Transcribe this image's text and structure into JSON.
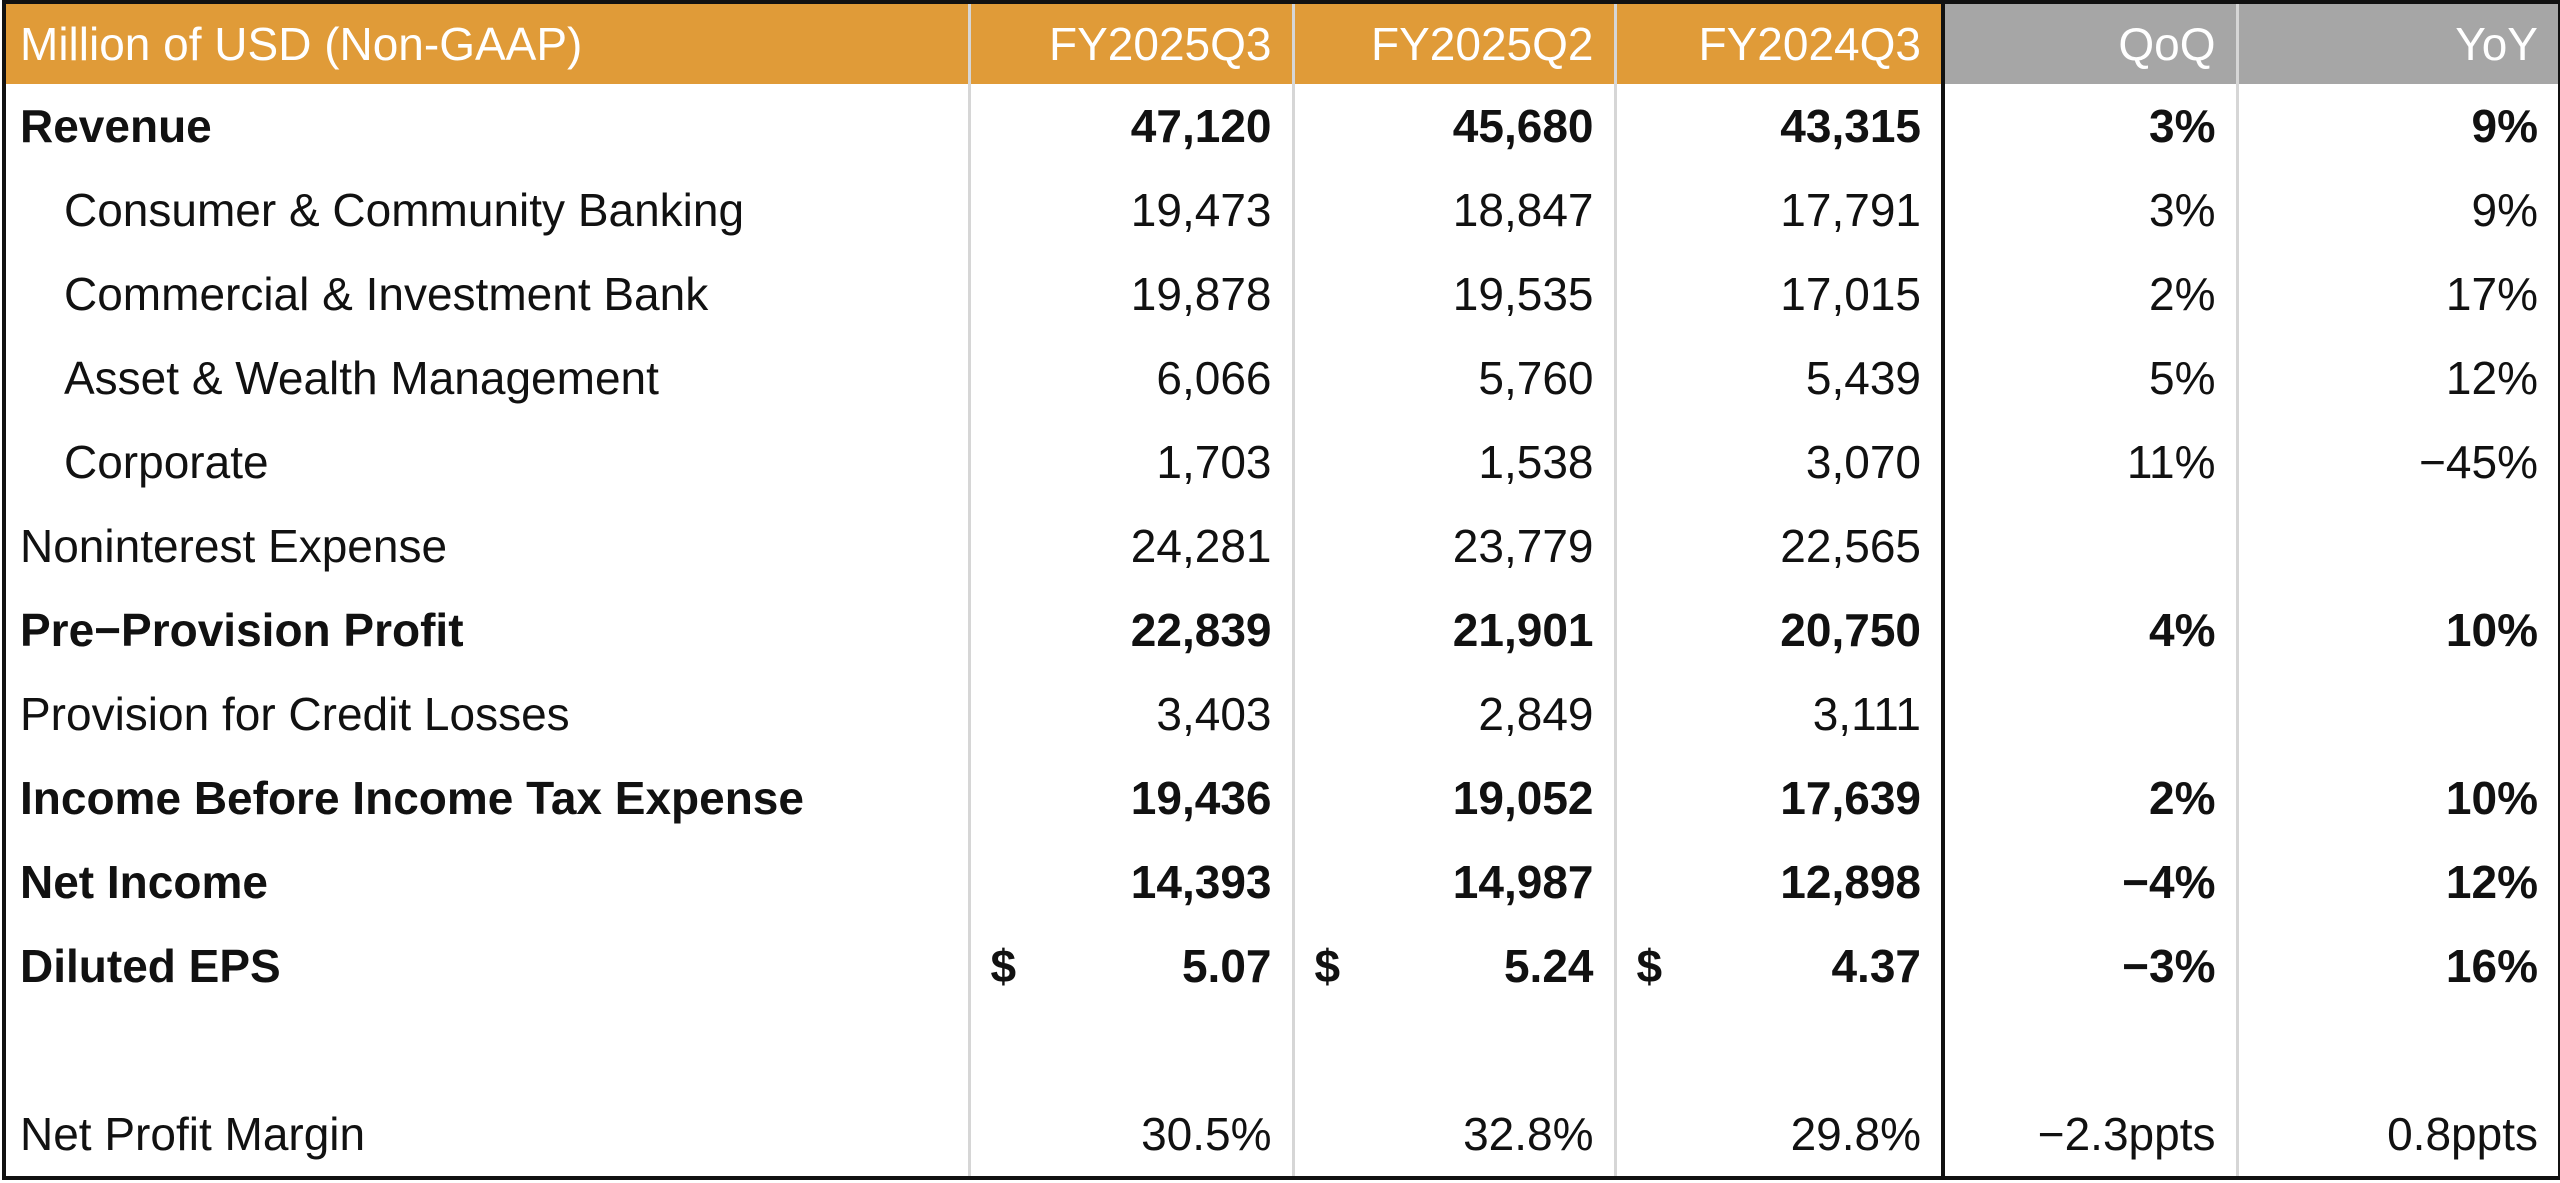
{
  "header": {
    "label": "Million of USD (Non-GAAP)",
    "columns": [
      "FY2025Q3",
      "FY2025Q2",
      "FY2024Q3",
      "QoQ",
      "YoY"
    ]
  },
  "colors": {
    "header_orange": "#e09b38",
    "header_gray": "#a6a6a6"
  },
  "rows": [
    {
      "label": "Revenue",
      "bold": true,
      "indent": false,
      "values": [
        "47,120",
        "45,680",
        "43,315",
        "3%",
        "9%"
      ]
    },
    {
      "label": "Consumer & Community Banking",
      "bold": false,
      "indent": true,
      "values": [
        "19,473",
        "18,847",
        "17,791",
        "3%",
        "9%"
      ]
    },
    {
      "label": "Commercial & Investment Bank",
      "bold": false,
      "indent": true,
      "values": [
        "19,878",
        "19,535",
        "17,015",
        "2%",
        "17%"
      ]
    },
    {
      "label": "Asset & Wealth Management",
      "bold": false,
      "indent": true,
      "values": [
        "6,066",
        "5,760",
        "5,439",
        "5%",
        "12%"
      ]
    },
    {
      "label": "Corporate",
      "bold": false,
      "indent": true,
      "values": [
        "1,703",
        "1,538",
        "3,070",
        "11%",
        "−45%"
      ]
    },
    {
      "label": "Noninterest Expense",
      "bold": false,
      "indent": false,
      "values": [
        "24,281",
        "23,779",
        "22,565",
        "",
        ""
      ]
    },
    {
      "label": "Pre−Provision Profit",
      "bold": true,
      "indent": false,
      "values": [
        "22,839",
        "21,901",
        "20,750",
        "4%",
        "10%"
      ]
    },
    {
      "label": "Provision for Credit Losses",
      "bold": false,
      "indent": false,
      "values": [
        "3,403",
        "2,849",
        "3,111",
        "",
        ""
      ]
    },
    {
      "label": "Income Before Income Tax Expense",
      "bold": true,
      "indent": false,
      "values": [
        "19,436",
        "19,052",
        "17,639",
        "2%",
        "10%"
      ]
    },
    {
      "label": "Net Income",
      "bold": true,
      "indent": false,
      "values": [
        "14,393",
        "14,987",
        "12,898",
        "−4%",
        "12%"
      ]
    },
    {
      "label": "Diluted EPS",
      "bold": true,
      "indent": false,
      "currency": "$",
      "values": [
        "5.07",
        "5.24",
        "4.37",
        "−3%",
        "16%"
      ]
    },
    {
      "label": "",
      "bold": false,
      "indent": false,
      "values": [
        "",
        "",
        "",
        "",
        ""
      ]
    },
    {
      "label": "Net Profit Margin",
      "bold": false,
      "indent": false,
      "values": [
        "30.5%",
        "32.8%",
        "29.8%",
        "−2.3ppts",
        "0.8ppts"
      ]
    }
  ]
}
